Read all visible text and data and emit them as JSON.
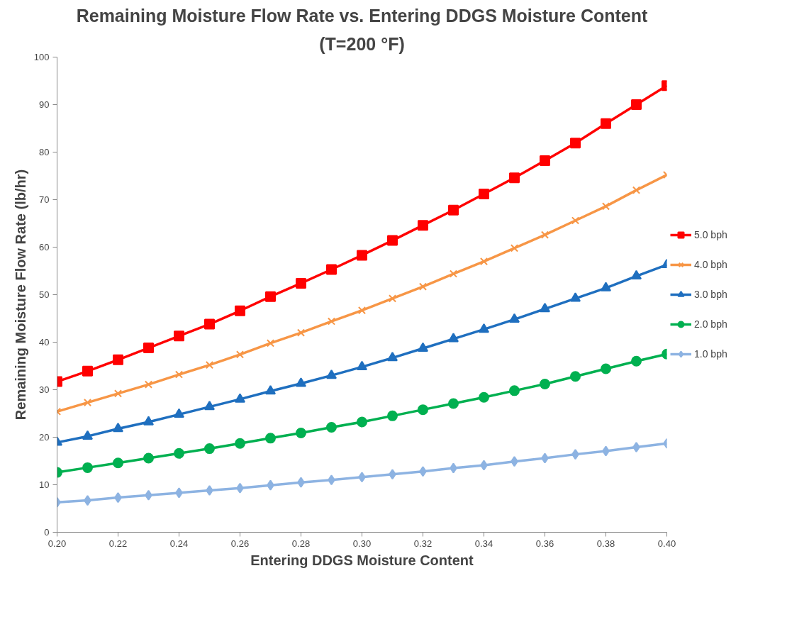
{
  "chart_data": {
    "type": "line",
    "title": "Remaining Moisture Flow Rate vs. Entering DDGS Moisture Content",
    "subtitle": "(T=200 °F)",
    "xlabel": "Entering DDGS Moisture Content",
    "ylabel": "Remaining Moisture Flow Rate (lb/hr)",
    "x": [
      0.2,
      0.21,
      0.22,
      0.23,
      0.24,
      0.25,
      0.26,
      0.27,
      0.28,
      0.29,
      0.3,
      0.31,
      0.32,
      0.33,
      0.34,
      0.35,
      0.36,
      0.37,
      0.38,
      0.39,
      0.4
    ],
    "xlim": [
      0.2,
      0.4
    ],
    "xticks": [
      {
        "value": 0.2,
        "label": "0.20"
      },
      {
        "value": 0.22,
        "label": "0.22"
      },
      {
        "value": 0.24,
        "label": "0.24"
      },
      {
        "value": 0.26,
        "label": "0.26"
      },
      {
        "value": 0.28,
        "label": "0.28"
      },
      {
        "value": 0.3,
        "label": "0.30"
      },
      {
        "value": 0.32,
        "label": "0.32"
      },
      {
        "value": 0.34,
        "label": "0.34"
      },
      {
        "value": 0.36,
        "label": "0.36"
      },
      {
        "value": 0.38,
        "label": "0.38"
      },
      {
        "value": 0.4,
        "label": "0.40"
      }
    ],
    "ylim": [
      0,
      100
    ],
    "yticks": [
      0,
      10,
      20,
      30,
      40,
      50,
      60,
      70,
      80,
      90,
      100
    ],
    "grid": false,
    "legend": "right",
    "line_style": "solid",
    "series": [
      {
        "name": "5.0 bph",
        "color": "#ff0000",
        "marker": "square",
        "values": [
          31.7,
          33.9,
          36.3,
          38.8,
          41.3,
          43.8,
          46.6,
          49.6,
          52.4,
          55.3,
          58.3,
          61.4,
          64.6,
          67.8,
          71.2,
          74.6,
          78.2,
          81.9,
          86.0,
          90.0,
          94.0
        ]
      },
      {
        "name": "4.0 bph",
        "color": "#f79646",
        "marker": "cross",
        "values": [
          25.4,
          27.3,
          29.2,
          31.1,
          33.2,
          35.2,
          37.4,
          39.8,
          42.0,
          44.4,
          46.7,
          49.2,
          51.7,
          54.4,
          57.0,
          59.8,
          62.6,
          65.6,
          68.6,
          72.0,
          75.2
        ]
      },
      {
        "name": "3.0 bph",
        "color": "#1f6fbf",
        "marker": "triangle",
        "values": [
          18.9,
          20.2,
          21.8,
          23.2,
          24.8,
          26.4,
          28.0,
          29.7,
          31.3,
          33.0,
          34.8,
          36.7,
          38.7,
          40.7,
          42.7,
          44.8,
          47.0,
          49.2,
          51.4,
          53.9,
          56.3
        ]
      },
      {
        "name": "2.0 bph",
        "color": "#00b050",
        "marker": "circle",
        "values": [
          12.6,
          13.6,
          14.6,
          15.6,
          16.6,
          17.6,
          18.7,
          19.8,
          20.9,
          22.1,
          23.2,
          24.5,
          25.8,
          27.1,
          28.4,
          29.8,
          31.2,
          32.8,
          34.4,
          36.0,
          37.5
        ]
      },
      {
        "name": "1.0 bph",
        "color": "#8db3e2",
        "marker": "diamond",
        "values": [
          6.3,
          6.7,
          7.3,
          7.8,
          8.3,
          8.8,
          9.3,
          9.9,
          10.5,
          11.0,
          11.6,
          12.2,
          12.8,
          13.5,
          14.1,
          14.9,
          15.6,
          16.4,
          17.1,
          17.9,
          18.7
        ]
      }
    ]
  }
}
